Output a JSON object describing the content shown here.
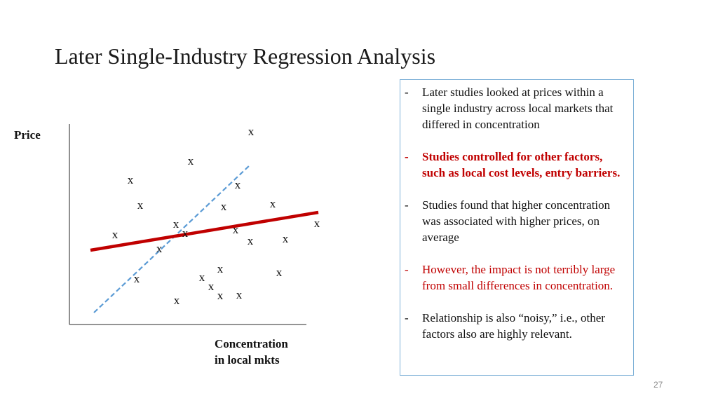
{
  "slide": {
    "title": "Later Single-Industry Regression Analysis",
    "page_number": "27"
  },
  "diagram": {
    "y_label": "Price",
    "x_label_line1": "Concentration",
    "x_label_line2": "in local mkts",
    "point_marker": "x",
    "point_count": 24,
    "colors": {
      "axes": "#555555",
      "regression_line": "#c00000",
      "dashed_line": "#5b9bd5"
    }
  },
  "textbox": {
    "border_color": "#7fb2d8",
    "bullets": [
      {
        "dash": "-",
        "text": "Later studies looked at prices within a single industry across local markets that differed in concentration",
        "style": "normal"
      },
      {
        "dash": "-",
        "text": "Studies controlled for other factors, such as local cost levels, entry barriers.",
        "style": "red-bold"
      },
      {
        "dash": "-",
        "text": "Studies found that higher concentration was associated with higher prices, on average",
        "style": "normal"
      },
      {
        "dash": "-",
        "text": "However, the impact is not terribly large from small differences in concentration.",
        "style": "red"
      },
      {
        "dash": "-",
        "text": "Relationship is also “noisy,” i.e., other factors also are highly relevant.",
        "style": "normal"
      }
    ]
  }
}
